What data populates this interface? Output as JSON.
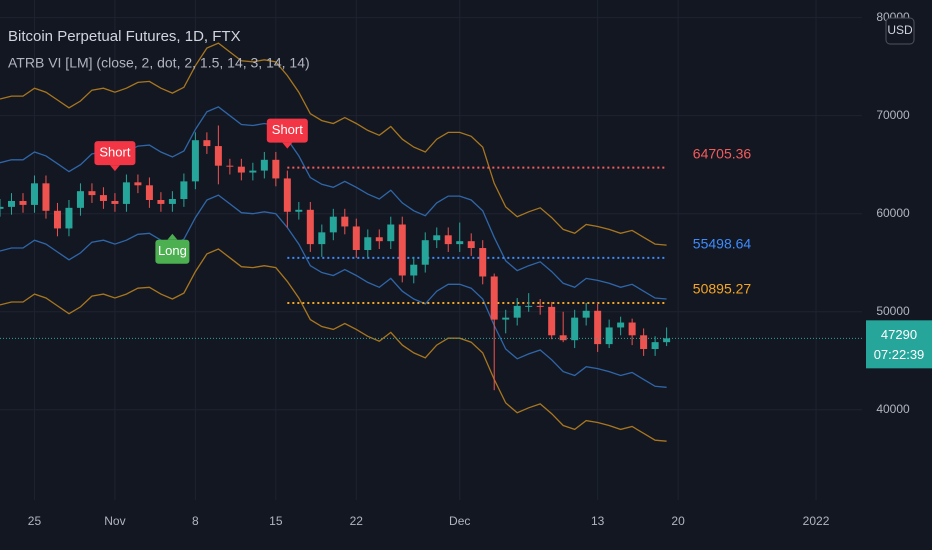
{
  "chart_data": {
    "type": "candlestick",
    "title": "Bitcoin Perpetual Futures, 1D, FTX",
    "subtitle": "ATRB VI [LM] (close, 2, dot, 2, 1.5, 14, 3, 14, 14)",
    "currency": "USD",
    "last_price": 47290,
    "last_price_color": "#26a69a",
    "countdown": "07:22:39",
    "up_color": "#26a69a",
    "down_color": "#ef5350",
    "grid": true,
    "xlim": [
      "Oct 22",
      "Jan 5"
    ],
    "xticks": [
      {
        "value": "Oct 25",
        "label": "25"
      },
      {
        "value": "Nov 1",
        "label": "Nov"
      },
      {
        "value": "Nov 8",
        "label": "8"
      },
      {
        "value": "Nov 15",
        "label": "15"
      },
      {
        "value": "Nov 22",
        "label": "22"
      },
      {
        "value": "Dec 1",
        "label": "Dec"
      },
      {
        "value": "Dec 13",
        "label": "13"
      },
      {
        "value": "Dec 20",
        "label": "20"
      },
      {
        "value": "Jan 1",
        "label": "2022"
      }
    ],
    "ylim": [
      30800,
      81800
    ],
    "yticks": [
      40000,
      50000,
      60000,
      70000,
      80000
    ],
    "x": [
      "Oct 22",
      "Oct 23",
      "Oct 24",
      "Oct 25",
      "Oct 26",
      "Oct 27",
      "Oct 28",
      "Oct 29",
      "Oct 30",
      "Oct 31",
      "Nov 1",
      "Nov 2",
      "Nov 3",
      "Nov 4",
      "Nov 5",
      "Nov 6",
      "Nov 7",
      "Nov 8",
      "Nov 9",
      "Nov 10",
      "Nov 11",
      "Nov 12",
      "Nov 13",
      "Nov 14",
      "Nov 15",
      "Nov 16",
      "Nov 17",
      "Nov 18",
      "Nov 19",
      "Nov 20",
      "Nov 21",
      "Nov 22",
      "Nov 23",
      "Nov 24",
      "Nov 25",
      "Nov 26",
      "Nov 27",
      "Nov 28",
      "Nov 29",
      "Nov 30",
      "Dec 1",
      "Dec 2",
      "Dec 3",
      "Dec 4",
      "Dec 5",
      "Dec 6",
      "Dec 7",
      "Dec 8",
      "Dec 9",
      "Dec 10",
      "Dec 11",
      "Dec 12",
      "Dec 13",
      "Dec 14",
      "Dec 15",
      "Dec 16",
      "Dec 17",
      "Dec 18",
      "Dec 19"
    ],
    "open": [
      60500,
      60700,
      61300,
      60900,
      63100,
      60300,
      58500,
      60600,
      62300,
      61900,
      61300,
      61000,
      63200,
      62900,
      61400,
      61000,
      61500,
      63300,
      67500,
      66900,
      64900,
      64800,
      64200,
      64400,
      65500,
      63600,
      60200,
      60400,
      56900,
      58100,
      59700,
      58700,
      56300,
      57600,
      57200,
      58900,
      53700,
      54800,
      57300,
      57800,
      56900,
      57200,
      56500,
      53600,
      49200,
      49400,
      50600,
      50600,
      50500,
      47600,
      47100,
      49400,
      50100,
      46700,
      48400,
      48900,
      47600,
      46200,
      46900
    ],
    "high": [
      61500,
      62100,
      62100,
      63900,
      63900,
      61100,
      61400,
      63100,
      63100,
      62700,
      62100,
      64000,
      64000,
      63700,
      62200,
      62300,
      64100,
      68300,
      68300,
      69000,
      65600,
      65600,
      65200,
      66300,
      66300,
      64400,
      61200,
      61200,
      58900,
      60500,
      60500,
      59500,
      58400,
      58400,
      59700,
      59700,
      55600,
      58100,
      58600,
      58600,
      59100,
      58000,
      57300,
      53900,
      50200,
      51400,
      51900,
      51300,
      51000,
      50000,
      50200,
      50900,
      50900,
      49200,
      49500,
      49300,
      48300,
      47500,
      48400
    ],
    "low": [
      59700,
      59900,
      60100,
      60100,
      59500,
      57700,
      57700,
      59800,
      61100,
      60500,
      60200,
      60200,
      62100,
      60600,
      60200,
      60200,
      60700,
      62500,
      66100,
      63000,
      64000,
      63400,
      63400,
      63600,
      62800,
      58600,
      59400,
      56100,
      55600,
      57300,
      57900,
      55500,
      55500,
      56400,
      56400,
      53000,
      52900,
      54000,
      56500,
      56100,
      56100,
      55700,
      52800,
      42000,
      47800,
      48600,
      50000,
      49700,
      47200,
      46900,
      46300,
      48600,
      45900,
      46300,
      47600,
      46600,
      45500,
      45500,
      46500
    ],
    "close": [
      60700,
      61300,
      60900,
      63100,
      60300,
      58500,
      60600,
      62300,
      61900,
      61300,
      61000,
      63200,
      62900,
      61400,
      61000,
      61500,
      63300,
      67500,
      66900,
      64900,
      64800,
      64200,
      64400,
      65500,
      63600,
      60200,
      60400,
      56900,
      58100,
      59700,
      58700,
      56300,
      57600,
      57200,
      58900,
      53700,
      54800,
      57300,
      57800,
      56900,
      57200,
      56500,
      53600,
      49200,
      49400,
      50600,
      50600,
      50500,
      47600,
      47100,
      49400,
      50100,
      46700,
      48400,
      48900,
      47600,
      46200,
      46900,
      47290
    ],
    "bands": [
      {
        "color": "#a8761f",
        "values": [
          71700,
          72000,
          72000,
          72800,
          72400,
          71600,
          70800,
          71500,
          72600,
          72800,
          72400,
          72800,
          73400,
          73500,
          72800,
          72300,
          72900,
          75100,
          76900,
          77400,
          76500,
          75600,
          75500,
          75700,
          75500,
          74100,
          72400,
          70200,
          69500,
          69200,
          69800,
          69200,
          68500,
          68000,
          68900,
          67600,
          66800,
          66300,
          67600,
          68300,
          68300,
          67900,
          66800,
          63100,
          60700,
          59700,
          60200,
          60600,
          59600,
          58400,
          58000,
          58900,
          58700,
          58400,
          58000,
          58300,
          57600,
          56900,
          56800
        ]
      },
      {
        "color": "#2f66a8",
        "values": [
          65200,
          65500,
          65500,
          66300,
          65900,
          65100,
          64300,
          65000,
          66100,
          66300,
          65900,
          66300,
          66900,
          67000,
          66300,
          65800,
          66400,
          68600,
          70400,
          70900,
          70000,
          69100,
          69000,
          69200,
          69000,
          67600,
          65900,
          63700,
          63000,
          62700,
          63300,
          62700,
          62000,
          61500,
          62400,
          61100,
          60300,
          59800,
          61100,
          61800,
          61800,
          61400,
          60300,
          57600,
          55200,
          54200,
          54700,
          55100,
          54100,
          52900,
          52500,
          53400,
          53200,
          52900,
          52500,
          52800,
          52100,
          51400,
          51300
        ]
      },
      {
        "color": "#2f66a8",
        "values": [
          56200,
          56500,
          56500,
          57300,
          56900,
          56100,
          55300,
          56000,
          57100,
          57300,
          56900,
          57300,
          57900,
          58000,
          57300,
          56800,
          57400,
          59600,
          61400,
          61900,
          61000,
          60100,
          60000,
          60200,
          60000,
          58600,
          56900,
          54700,
          54000,
          53700,
          54300,
          53700,
          53000,
          52500,
          53400,
          52100,
          51300,
          50800,
          52100,
          52800,
          52800,
          52400,
          51300,
          48600,
          46200,
          45200,
          45700,
          46100,
          45100,
          43900,
          43500,
          44400,
          44200,
          43900,
          43500,
          43800,
          43100,
          42400,
          42300
        ]
      },
      {
        "color": "#a8761f",
        "values": [
          50700,
          51000,
          51000,
          51800,
          51400,
          50600,
          49800,
          50500,
          51600,
          51800,
          51400,
          51800,
          52400,
          52500,
          51800,
          51300,
          51900,
          54100,
          55900,
          56400,
          55500,
          54600,
          54500,
          54700,
          54500,
          53100,
          51400,
          49200,
          48500,
          48200,
          48800,
          48200,
          47500,
          47000,
          47900,
          46600,
          45800,
          45300,
          46600,
          47300,
          47300,
          46900,
          45800,
          43100,
          40700,
          39700,
          40200,
          40600,
          39600,
          38400,
          38000,
          38900,
          38700,
          38400,
          38000,
          38300,
          37600,
          36900,
          36800
        ]
      }
    ],
    "levels": [
      {
        "value": 64705.36,
        "color": "#f45b5b",
        "from": "Nov 16"
      },
      {
        "value": 55498.64,
        "color": "#3d8bfd",
        "from": "Nov 16"
      },
      {
        "value": 50895.27,
        "color": "#f5a623",
        "from": "Nov 16"
      }
    ],
    "annotations": [
      {
        "text": "Short",
        "x": "Nov 1",
        "color": "#f23645",
        "position": "above"
      },
      {
        "text": "Long",
        "x": "Nov 6",
        "color": "#4caf50",
        "position": "below"
      },
      {
        "text": "Short",
        "x": "Nov 16",
        "color": "#f23645",
        "position": "above"
      }
    ]
  }
}
